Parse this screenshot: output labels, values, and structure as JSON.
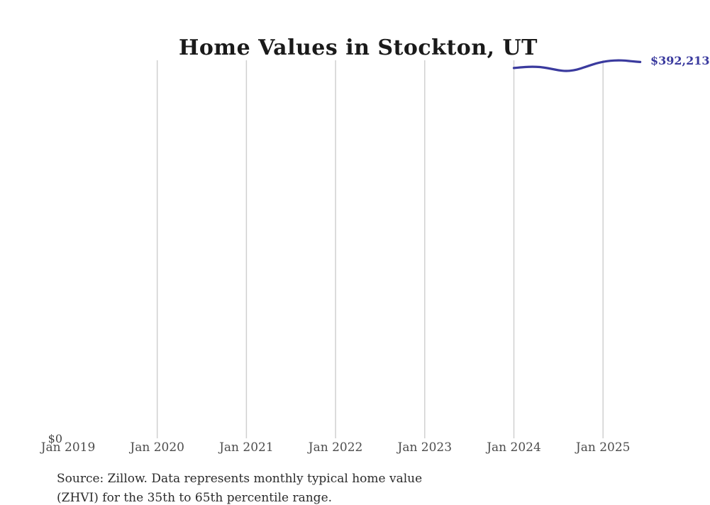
{
  "chart": {
    "title": "Home Values in Stockton, UT",
    "y_zero_label": "$0",
    "end_value_label": "$392,213",
    "source_line1": "Source: Zillow. Data represents monthly typical home value",
    "source_line2": "(ZHVI) for the 35th to 65th percentile range.",
    "colors": {
      "line": "#3a3a9e",
      "grid": "#d0d0d0",
      "title_text": "#1a1a1a",
      "tick_text": "#4d4d4d",
      "source_text": "#2b2b2b",
      "background": "#ffffff"
    }
  },
  "chart_data": {
    "type": "line",
    "title": "Home Values in Stockton, UT",
    "xlabel": "",
    "ylabel": "",
    "x_ticks": [
      "Jan 2019",
      "Jan 2020",
      "Jan 2021",
      "Jan 2022",
      "Jan 2023",
      "Jan 2024",
      "Jan 2025"
    ],
    "x": [
      "2024-01",
      "2024-02",
      "2024-03",
      "2024-04",
      "2024-05",
      "2024-06",
      "2024-07",
      "2024-08",
      "2024-09",
      "2024-10",
      "2024-11",
      "2024-12",
      "2025-01",
      "2025-02",
      "2025-03",
      "2025-04",
      "2025-05",
      "2025-06"
    ],
    "values": [
      386000,
      386700,
      387300,
      387300,
      386600,
      385200,
      383600,
      382700,
      383400,
      385400,
      388100,
      390700,
      392500,
      393600,
      394000,
      393700,
      392900,
      392213
    ],
    "ylim": [
      0,
      394000
    ],
    "grid": "vertical-only",
    "legend": "none",
    "end_label": "$392,213",
    "notes": "series spans Jan 2024 through Jun 2025 only; rest of axis range is empty"
  }
}
